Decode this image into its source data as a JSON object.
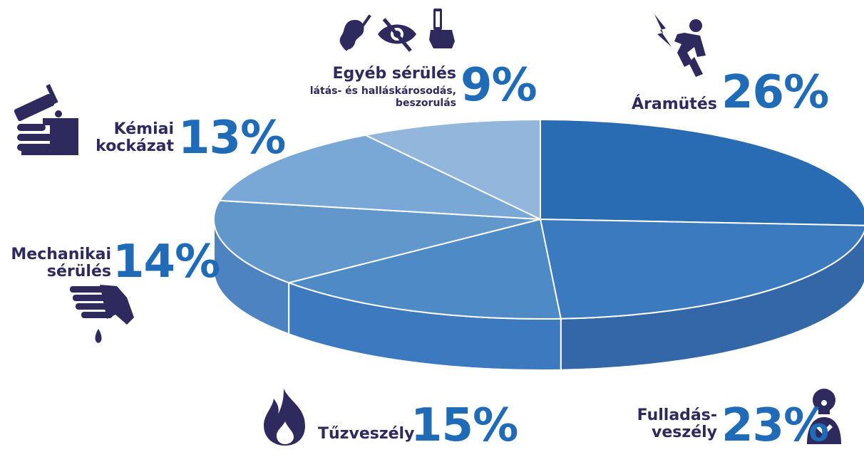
{
  "chart_data": {
    "type": "pie",
    "style": "3d",
    "slices": [
      {
        "label": "Áramütés",
        "value": 26,
        "value_label": "26%",
        "color": "#2a6cb4",
        "side": "#2a5e9e",
        "icon": "electric-shock-icon"
      },
      {
        "label": "Fulladás-veszély",
        "label_lines": [
          "Fulladás-",
          "veszély"
        ],
        "value": 23,
        "value_label": "23%",
        "color": "#3b7abf",
        "side": "#3467a8",
        "icon": "choking-icon"
      },
      {
        "label": "Tűzveszély",
        "value": 15,
        "value_label": "15%",
        "color": "#4e8ac6",
        "side": "#3d79bf",
        "icon": "fire-icon"
      },
      {
        "label": "Mechanikai sérülés",
        "label_lines": [
          "Mechanikai",
          "sérülés"
        ],
        "value": 14,
        "value_label": "14%",
        "color": "#6297cc",
        "side": "#4d83c0",
        "icon": "injured-hand-icon"
      },
      {
        "label": "Kémiai kockázat",
        "label_lines": [
          "Kémiai",
          "kockázat"
        ],
        "value": 13,
        "value_label": "13%",
        "color": "#79a8d6",
        "side": "#6a98cb",
        "icon": "chemical-hazard-icon"
      },
      {
        "label": "Egyéb sérülés",
        "sublabel_lines": [
          "látás- és halláskárosodás,",
          "beszorulás"
        ],
        "value": 9,
        "value_label": "9%",
        "color": "#92b6dc",
        "side": "#7ea5d2",
        "icon": "hearing-vision-entrapment-icons"
      }
    ]
  }
}
